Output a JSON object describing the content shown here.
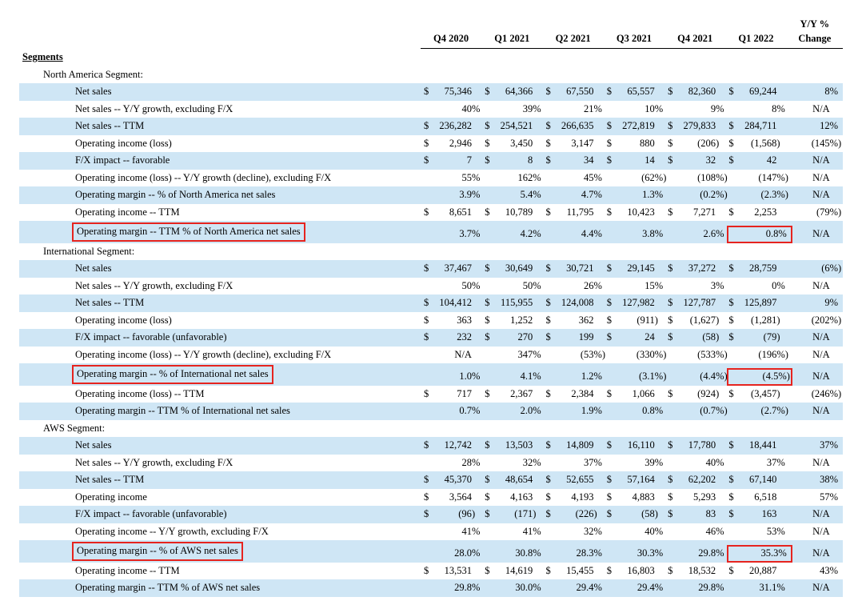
{
  "columns": [
    "Q4 2020",
    "Q1 2021",
    "Q2 2021",
    "Q3 2021",
    "Q4 2021",
    "Q1 2022"
  ],
  "yy_header_top": "Y/Y %",
  "yy_header_bot": "Change",
  "segments_title": "Segments",
  "highlight_color": "#e6241f",
  "band_color": "#cfe6f5",
  "groups": [
    {
      "title": "North America Segment:",
      "rows": [
        {
          "label": "Net sales",
          "type": "cur",
          "values": [
            "75,346",
            "64,366",
            "67,550",
            "65,557",
            "82,360",
            "69,244"
          ],
          "yy": "8",
          "yysuf": "%",
          "band": true
        },
        {
          "label": "Net sales -- Y/Y growth, excluding F/X",
          "type": "pct",
          "values": [
            "40",
            "39",
            "21",
            "10",
            "9",
            "8"
          ],
          "yy": "N/A",
          "band": false
        },
        {
          "label": "Net sales -- TTM",
          "type": "cur_noprefix",
          "values": [
            "236,282",
            "254,521",
            "266,635",
            "272,819",
            "279,833",
            "284,711"
          ],
          "yy": "12",
          "yysuf": "%",
          "band": true
        },
        {
          "label": "Operating income (loss)",
          "type": "cur",
          "values": [
            "2,946",
            "3,450",
            "3,147",
            "880",
            "(206)",
            "(1,568)"
          ],
          "yy": "(145)",
          "yysuf": "%",
          "band": false
        },
        {
          "label": "F/X impact -- favorable",
          "type": "cur",
          "values": [
            "7",
            "8",
            "34",
            "14",
            "32",
            "42"
          ],
          "yy": "N/A",
          "band": true
        },
        {
          "label": "Operating income (loss) -- Y/Y growth (decline), excluding F/X",
          "type": "pct",
          "values": [
            "55",
            "162",
            "45",
            "(62)",
            "(108)",
            "(147)"
          ],
          "yy": "N/A",
          "band": false
        },
        {
          "label": "Operating margin -- % of North America net sales",
          "type": "pct",
          "values": [
            "3.9",
            "5.4",
            "4.7",
            "1.3",
            "(0.2)",
            "(2.3)"
          ],
          "yy": "N/A",
          "band": true
        },
        {
          "label": "Operating income -- TTM",
          "type": "cur",
          "values": [
            "8,651",
            "10,789",
            "11,795",
            "10,423",
            "7,271",
            "2,253"
          ],
          "yy": "(79)",
          "yysuf": "%",
          "band": false
        },
        {
          "label": "Operating margin -- TTM % of North America net sales",
          "type": "pct",
          "values": [
            "3.7",
            "4.2",
            "4.4",
            "3.8",
            "2.6",
            "0.8"
          ],
          "yy": "N/A",
          "band": true,
          "hl": true
        }
      ]
    },
    {
      "title": "International Segment:",
      "rows": [
        {
          "label": "Net sales",
          "type": "cur",
          "values": [
            "37,467",
            "30,649",
            "30,721",
            "29,145",
            "37,272",
            "28,759"
          ],
          "yy": "(6)",
          "yysuf": "%",
          "band": true
        },
        {
          "label": "Net sales -- Y/Y growth, excluding F/X",
          "type": "pct",
          "values": [
            "50",
            "50",
            "26",
            "15",
            "3",
            "0"
          ],
          "yy": "N/A",
          "band": false
        },
        {
          "label": "Net sales -- TTM",
          "type": "cur_noprefix",
          "values": [
            "104,412",
            "115,955",
            "124,008",
            "127,982",
            "127,787",
            "125,897"
          ],
          "yy": "9",
          "yysuf": "%",
          "band": true
        },
        {
          "label": "Operating income (loss)",
          "type": "cur",
          "values": [
            "363",
            "1,252",
            "362",
            "(911)",
            "(1,627)",
            "(1,281)"
          ],
          "yy": "(202)",
          "yysuf": "%",
          "band": false
        },
        {
          "label": "F/X impact -- favorable (unfavorable)",
          "type": "cur",
          "values": [
            "232",
            "270",
            "199",
            "24",
            "(58)",
            "(79)"
          ],
          "yy": "N/A",
          "band": true
        },
        {
          "label": "Operating income (loss) -- Y/Y growth (decline), excluding F/X",
          "type": "pct",
          "values": [
            "N/A",
            "347",
            "(53)",
            "(330)",
            "(533)",
            "(196)"
          ],
          "yy": "N/A",
          "band": false
        },
        {
          "label": "Operating margin -- % of International net sales",
          "type": "pct",
          "values": [
            "1.0",
            "4.1",
            "1.2",
            "(3.1)",
            "(4.4)",
            "(4.5)"
          ],
          "yy": "N/A",
          "band": true,
          "hl": true
        },
        {
          "label": "Operating income (loss) -- TTM",
          "type": "cur",
          "values": [
            "717",
            "2,367",
            "2,384",
            "1,066",
            "(924)",
            "(3,457)"
          ],
          "yy": "(246)",
          "yysuf": "%",
          "band": false
        },
        {
          "label": "Operating margin -- TTM % of International net sales",
          "type": "pct",
          "values": [
            "0.7",
            "2.0",
            "1.9",
            "0.8",
            "(0.7)",
            "(2.7)"
          ],
          "yy": "N/A",
          "band": true
        }
      ]
    },
    {
      "title": "AWS Segment:",
      "rows": [
        {
          "label": "Net sales",
          "type": "cur",
          "values": [
            "12,742",
            "13,503",
            "14,809",
            "16,110",
            "17,780",
            "18,441"
          ],
          "yy": "37",
          "yysuf": "%",
          "band": true
        },
        {
          "label": "Net sales -- Y/Y growth, excluding F/X",
          "type": "pct",
          "values": [
            "28",
            "32",
            "37",
            "39",
            "40",
            "37"
          ],
          "yy": "N/A",
          "band": false
        },
        {
          "label": "Net sales -- TTM",
          "type": "cur",
          "values": [
            "45,370",
            "48,654",
            "52,655",
            "57,164",
            "62,202",
            "67,140"
          ],
          "yy": "38",
          "yysuf": "%",
          "band": true
        },
        {
          "label": "Operating income",
          "type": "cur",
          "values": [
            "3,564",
            "4,163",
            "4,193",
            "4,883",
            "5,293",
            "6,518"
          ],
          "yy": "57",
          "yysuf": "%",
          "band": false
        },
        {
          "label": "F/X impact -- favorable (unfavorable)",
          "type": "cur",
          "values": [
            "(96)",
            "(171)",
            "(226)",
            "(58)",
            "83",
            "163"
          ],
          "yy": "N/A",
          "band": true
        },
        {
          "label": "Operating income -- Y/Y growth, excluding F/X",
          "type": "pct",
          "values": [
            "41",
            "41",
            "32",
            "40",
            "46",
            "53"
          ],
          "yy": "N/A",
          "band": false
        },
        {
          "label": "Operating margin -- % of AWS net sales",
          "type": "pct",
          "values": [
            "28.0",
            "30.8",
            "28.3",
            "30.3",
            "29.8",
            "35.3"
          ],
          "yy": "N/A",
          "band": true,
          "hl": true
        },
        {
          "label": "Operating income -- TTM",
          "type": "cur_noprefix",
          "values": [
            "13,531",
            "14,619",
            "15,455",
            "16,803",
            "18,532",
            "20,887"
          ],
          "yy": "43",
          "yysuf": "%",
          "band": false
        },
        {
          "label": "Operating margin -- TTM % of AWS net sales",
          "type": "pct",
          "values": [
            "29.8",
            "30.0",
            "29.4",
            "29.4",
            "29.8",
            "31.1"
          ],
          "yy": "N/A",
          "band": true
        }
      ]
    }
  ]
}
